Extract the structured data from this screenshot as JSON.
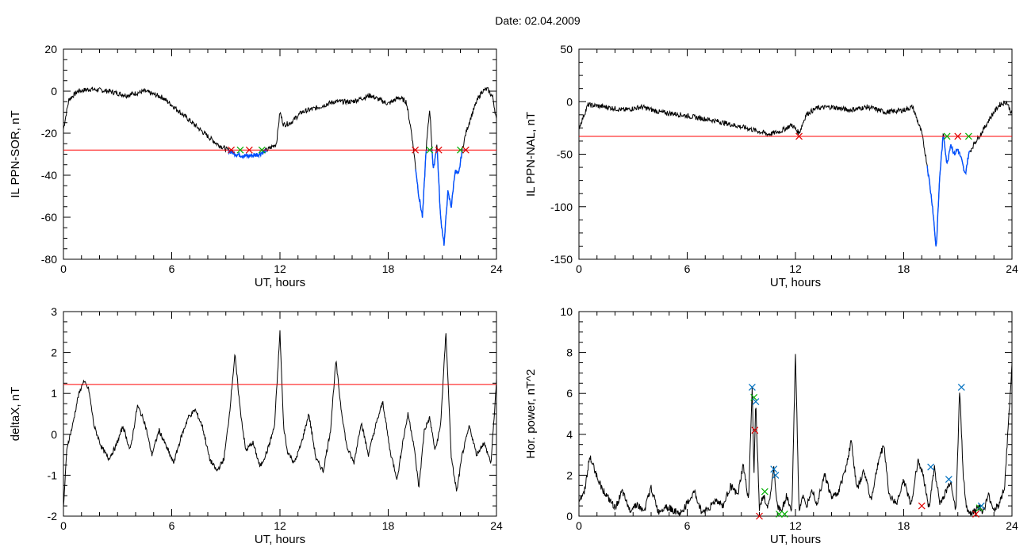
{
  "title": "Date:  02.04.2009",
  "colors": {
    "trace": "#000000",
    "threshold": "#ff0000",
    "highlight": "#0050ff",
    "marker_red": "#e00000",
    "marker_green": "#00b000",
    "marker_blue": "#0070c0"
  },
  "chart_data": [
    {
      "id": "ppn-sor",
      "type": "line",
      "xlabel": "UT, hours",
      "ylabel": "IL PPN-SOR, nT",
      "xlim": [
        0,
        24
      ],
      "ylim": [
        -80,
        20
      ],
      "xticks": [
        0,
        6,
        12,
        18,
        24
      ],
      "yticks": [
        -80,
        -60,
        -40,
        -20,
        0,
        20
      ],
      "threshold": -28,
      "series": [
        {
          "x": [
            0,
            0.3,
            0.8,
            1.5,
            2.5,
            3.5,
            4.5,
            5.5,
            6.2,
            7,
            7.8,
            8.5,
            9.1,
            9.6,
            10.2,
            10.8,
            11.3,
            11.8,
            12.0,
            12.2,
            12.6,
            13.2,
            14,
            15,
            16,
            17,
            18,
            18.6,
            19.0,
            19.3,
            19.5,
            19.7,
            19.9,
            20.1,
            20.3,
            20.5,
            20.7,
            20.9,
            21.1,
            21.3,
            21.5,
            21.7,
            21.9,
            22.1,
            22.3,
            22.6,
            22.9,
            23.2,
            23.5,
            23.8,
            24
          ],
          "y": [
            -18,
            -4,
            0,
            1,
            0,
            -2,
            0,
            -3,
            -8,
            -14,
            -20,
            -25,
            -28,
            -30,
            -31,
            -30,
            -28,
            -25,
            -10,
            -16,
            -15,
            -10,
            -8,
            -5,
            -5,
            -2,
            -6,
            -3,
            -5,
            -20,
            -35,
            -50,
            -60,
            -28,
            -8,
            -38,
            -25,
            -60,
            -73,
            -48,
            -55,
            -38,
            -40,
            -28,
            -20,
            -12,
            -5,
            0,
            1,
            -3,
            -14
          ]
        }
      ],
      "highlight_ranges": [
        [
          9.1,
          11.3
        ],
        [
          19.5,
          22.3
        ]
      ],
      "markers_x": [
        9.3,
        9.8,
        10.3,
        11.0,
        19.5,
        20.3,
        20.8,
        22.0,
        22.3
      ]
    },
    {
      "id": "ppn-nal",
      "type": "line",
      "xlabel": "UT, hours",
      "ylabel": "IL PPN-NAL, nT",
      "xlim": [
        0,
        24
      ],
      "ylim": [
        -150,
        50
      ],
      "xticks": [
        0,
        6,
        12,
        18,
        24
      ],
      "yticks": [
        -150,
        -100,
        -50,
        0,
        50
      ],
      "threshold": -33,
      "series": [
        {
          "x": [
            0,
            0.5,
            1.5,
            2.5,
            3.5,
            4.5,
            5.5,
            6.5,
            7.5,
            8.5,
            9.5,
            10.5,
            11.2,
            11.8,
            12.2,
            12.6,
            13.2,
            14,
            15,
            16,
            17,
            18,
            18.5,
            19.0,
            19.3,
            19.6,
            19.8,
            20.0,
            20.2,
            20.4,
            20.6,
            20.8,
            21.0,
            21.2,
            21.4,
            21.6,
            21.9,
            22.3,
            22.8,
            23.3,
            23.7,
            24
          ],
          "y": [
            -25,
            -3,
            -5,
            -8,
            -5,
            -10,
            -12,
            -15,
            -18,
            -22,
            -26,
            -31,
            -28,
            -22,
            -30,
            -12,
            -6,
            -5,
            -8,
            -5,
            -10,
            -8,
            -5,
            -30,
            -60,
            -100,
            -140,
            -70,
            -30,
            -60,
            -40,
            -50,
            -45,
            -55,
            -70,
            -50,
            -40,
            -30,
            -15,
            -3,
            0,
            -12
          ]
        }
      ],
      "highlight_ranges": [
        [
          19.3,
          21.7
        ]
      ],
      "markers_x": [
        12.2,
        20.4,
        21.0,
        21.6
      ]
    },
    {
      "id": "deltax",
      "type": "line",
      "xlabel": "UT, hours",
      "ylabel": "deltaX, nT",
      "xlim": [
        0,
        24
      ],
      "ylim": [
        -2,
        3
      ],
      "xticks": [
        0,
        6,
        12,
        18,
        24
      ],
      "yticks": [
        -2,
        -1,
        0,
        1,
        2,
        3
      ],
      "threshold": 1.22,
      "series": [
        {
          "x": [
            0,
            0.2,
            0.5,
            0.8,
            1.1,
            1.4,
            1.7,
            2.1,
            2.5,
            2.9,
            3.3,
            3.7,
            4.1,
            4.5,
            4.9,
            5.3,
            5.7,
            6.1,
            6.5,
            6.9,
            7.3,
            7.7,
            8.1,
            8.5,
            8.9,
            9.2,
            9.5,
            9.8,
            10.1,
            10.5,
            10.9,
            11.3,
            11.7,
            12.0,
            12.2,
            12.4,
            12.8,
            13.2,
            13.6,
            14.0,
            14.4,
            14.8,
            15.1,
            15.4,
            15.7,
            16.1,
            16.5,
            16.9,
            17.3,
            17.7,
            18.1,
            18.5,
            18.8,
            19.1,
            19.4,
            19.7,
            20.0,
            20.3,
            20.6,
            20.9,
            21.2,
            21.5,
            21.8,
            22.1,
            22.5,
            22.9,
            23.3,
            23.7,
            24
          ],
          "y": [
            -1.8,
            -0.3,
            0.2,
            0.9,
            1.3,
            1.1,
            0.2,
            -0.3,
            -0.6,
            -0.3,
            0.2,
            -0.4,
            0.7,
            0.3,
            -0.5,
            0.1,
            -0.3,
            -0.7,
            -0.1,
            0.4,
            0.6,
            0.2,
            -0.6,
            -0.9,
            -0.6,
            0.5,
            1.95,
            0.6,
            -0.4,
            -0.2,
            -0.8,
            -0.4,
            0.2,
            2.5,
            0.2,
            -0.4,
            -0.7,
            -0.2,
            0.5,
            -0.6,
            -0.9,
            0.1,
            1.8,
            0.6,
            -0.3,
            -0.7,
            0.3,
            -0.5,
            0.2,
            0.8,
            -0.4,
            -1.1,
            -0.2,
            0.5,
            -0.2,
            -1.3,
            0.1,
            0.4,
            -0.4,
            0.2,
            2.5,
            -0.6,
            -1.4,
            -0.5,
            0.2,
            -0.5,
            -0.2,
            -0.7,
            1.3
          ]
        }
      ]
    },
    {
      "id": "hor-power",
      "type": "line",
      "xlabel": "UT, hours",
      "ylabel": "Hor. power, nT^2",
      "xlim": [
        0,
        24
      ],
      "ylim": [
        0,
        10
      ],
      "xticks": [
        0,
        6,
        12,
        18,
        24
      ],
      "yticks": [
        0,
        2,
        4,
        6,
        8,
        10
      ],
      "series": [
        {
          "x": [
            0,
            0.3,
            0.6,
            0.9,
            1.2,
            1.6,
            2.0,
            2.4,
            2.8,
            3.2,
            3.6,
            4.0,
            4.4,
            4.8,
            5.2,
            5.6,
            6.0,
            6.4,
            6.8,
            7.2,
            7.6,
            8.0,
            8.4,
            8.8,
            9.1,
            9.4,
            9.6,
            9.7,
            9.8,
            10.0,
            10.2,
            10.5,
            10.8,
            11.0,
            11.2,
            11.5,
            11.8,
            12.0,
            12.2,
            12.4,
            12.6,
            12.9,
            13.2,
            13.6,
            14.0,
            14.4,
            14.8,
            15.1,
            15.4,
            15.8,
            16.2,
            16.6,
            16.9,
            17.2,
            17.6,
            18.0,
            18.4,
            18.8,
            19.1,
            19.4,
            19.7,
            20.0,
            20.3,
            20.6,
            20.9,
            21.1,
            21.3,
            21.5,
            21.8,
            22.1,
            22.4,
            22.7,
            23.0,
            23.3,
            23.6,
            24
          ],
          "y": [
            0.8,
            1.2,
            2.9,
            2.2,
            1.5,
            0.9,
            0.4,
            1.2,
            0.3,
            0.6,
            0.2,
            1.4,
            0.2,
            0.5,
            0.3,
            0.1,
            0.6,
            1.2,
            0.2,
            0.4,
            0.8,
            0.5,
            1.5,
            1.0,
            2.5,
            0.8,
            6.3,
            2.0,
            5.6,
            0.3,
            1.0,
            0.4,
            2.3,
            0.5,
            0.2,
            1.0,
            0.2,
            8.0,
            0.3,
            1.0,
            0.4,
            1.4,
            0.6,
            2.1,
            0.9,
            1.2,
            2.4,
            3.7,
            1.3,
            2.2,
            0.8,
            2.7,
            3.5,
            1.0,
            0.6,
            1.8,
            0.5,
            2.8,
            1.9,
            0.4,
            2.4,
            0.6,
            1.1,
            1.7,
            0.3,
            6.3,
            2.0,
            0.3,
            0.1,
            0.5,
            0.2,
            1.0,
            0.3,
            0.6,
            1.5,
            7.4
          ]
        }
      ],
      "markers": [
        {
          "x": 9.6,
          "y": 6.3,
          "color": "blue"
        },
        {
          "x": 9.7,
          "y": 5.8,
          "color": "green"
        },
        {
          "x": 9.8,
          "y": 5.6,
          "color": "blue"
        },
        {
          "x": 9.75,
          "y": 4.2,
          "color": "red"
        },
        {
          "x": 10.3,
          "y": 1.2,
          "color": "green"
        },
        {
          "x": 10.8,
          "y": 2.3,
          "color": "blue"
        },
        {
          "x": 10.9,
          "y": 2.0,
          "color": "blue"
        },
        {
          "x": 11.1,
          "y": 0.1,
          "color": "green"
        },
        {
          "x": 11.4,
          "y": 0.1,
          "color": "green"
        },
        {
          "x": 10.0,
          "y": 0.0,
          "color": "red"
        },
        {
          "x": 19.0,
          "y": 0.5,
          "color": "red"
        },
        {
          "x": 19.5,
          "y": 2.4,
          "color": "blue"
        },
        {
          "x": 20.5,
          "y": 1.8,
          "color": "blue"
        },
        {
          "x": 21.2,
          "y": 6.3,
          "color": "blue"
        },
        {
          "x": 22.0,
          "y": 0.1,
          "color": "red"
        },
        {
          "x": 22.2,
          "y": 0.4,
          "color": "green"
        },
        {
          "x": 22.3,
          "y": 0.5,
          "color": "blue"
        }
      ]
    }
  ]
}
